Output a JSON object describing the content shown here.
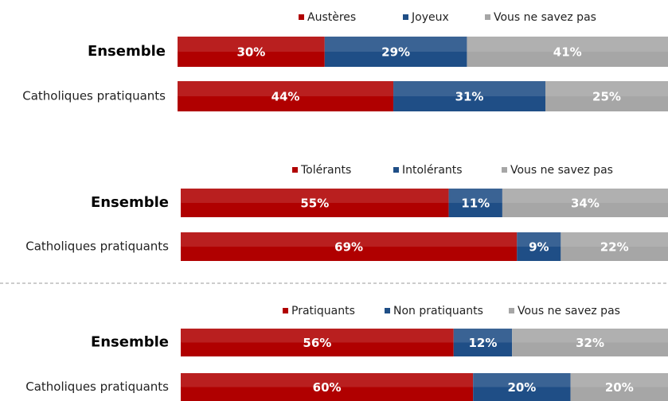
{
  "chart_data": [
    {
      "type": "bar",
      "stacked": true,
      "orientation": "horizontal",
      "categories": [
        "Ensemble",
        "Catholiques pratiquants"
      ],
      "series": [
        {
          "name": "Austères",
          "color": "#b00000",
          "values": [
            30,
            44
          ],
          "value_labels": [
            "30%",
            "44%"
          ]
        },
        {
          "name": "Joyeux",
          "color": "#1f4e86",
          "values": [
            29,
            31
          ],
          "value_labels": [
            "29%",
            "31%"
          ]
        },
        {
          "name": "Vous ne savez pas",
          "color": "#a6a6a6",
          "values": [
            41,
            25
          ],
          "value_labels": [
            "41%",
            "25%"
          ]
        }
      ]
    },
    {
      "type": "bar",
      "stacked": true,
      "orientation": "horizontal",
      "categories": [
        "Ensemble",
        "Catholiques pratiquants"
      ],
      "series": [
        {
          "name": "Tolérants",
          "color": "#b00000",
          "values": [
            55,
            69
          ],
          "value_labels": [
            "55%",
            "69%"
          ]
        },
        {
          "name": "Intolérants",
          "color": "#1f4e86",
          "values": [
            11,
            9
          ],
          "value_labels": [
            "11%",
            "9%"
          ]
        },
        {
          "name": "Vous ne savez pas",
          "color": "#a6a6a6",
          "values": [
            34,
            22
          ],
          "value_labels": [
            "34%",
            "22%"
          ]
        }
      ]
    },
    {
      "type": "bar",
      "stacked": true,
      "orientation": "horizontal",
      "categories": [
        "Ensemble",
        "Catholiques pratiquants"
      ],
      "series": [
        {
          "name": "Pratiquants",
          "color": "#b00000",
          "values": [
            56,
            60
          ],
          "value_labels": [
            "56%",
            "60%"
          ]
        },
        {
          "name": "Non pratiquants",
          "color": "#1f4e86",
          "values": [
            12,
            20
          ],
          "value_labels": [
            "12%",
            "20%"
          ]
        },
        {
          "name": "Vous ne savez pas",
          "color": "#a6a6a6",
          "values": [
            32,
            20
          ],
          "value_labels": [
            "32%",
            "20%"
          ]
        }
      ]
    }
  ]
}
